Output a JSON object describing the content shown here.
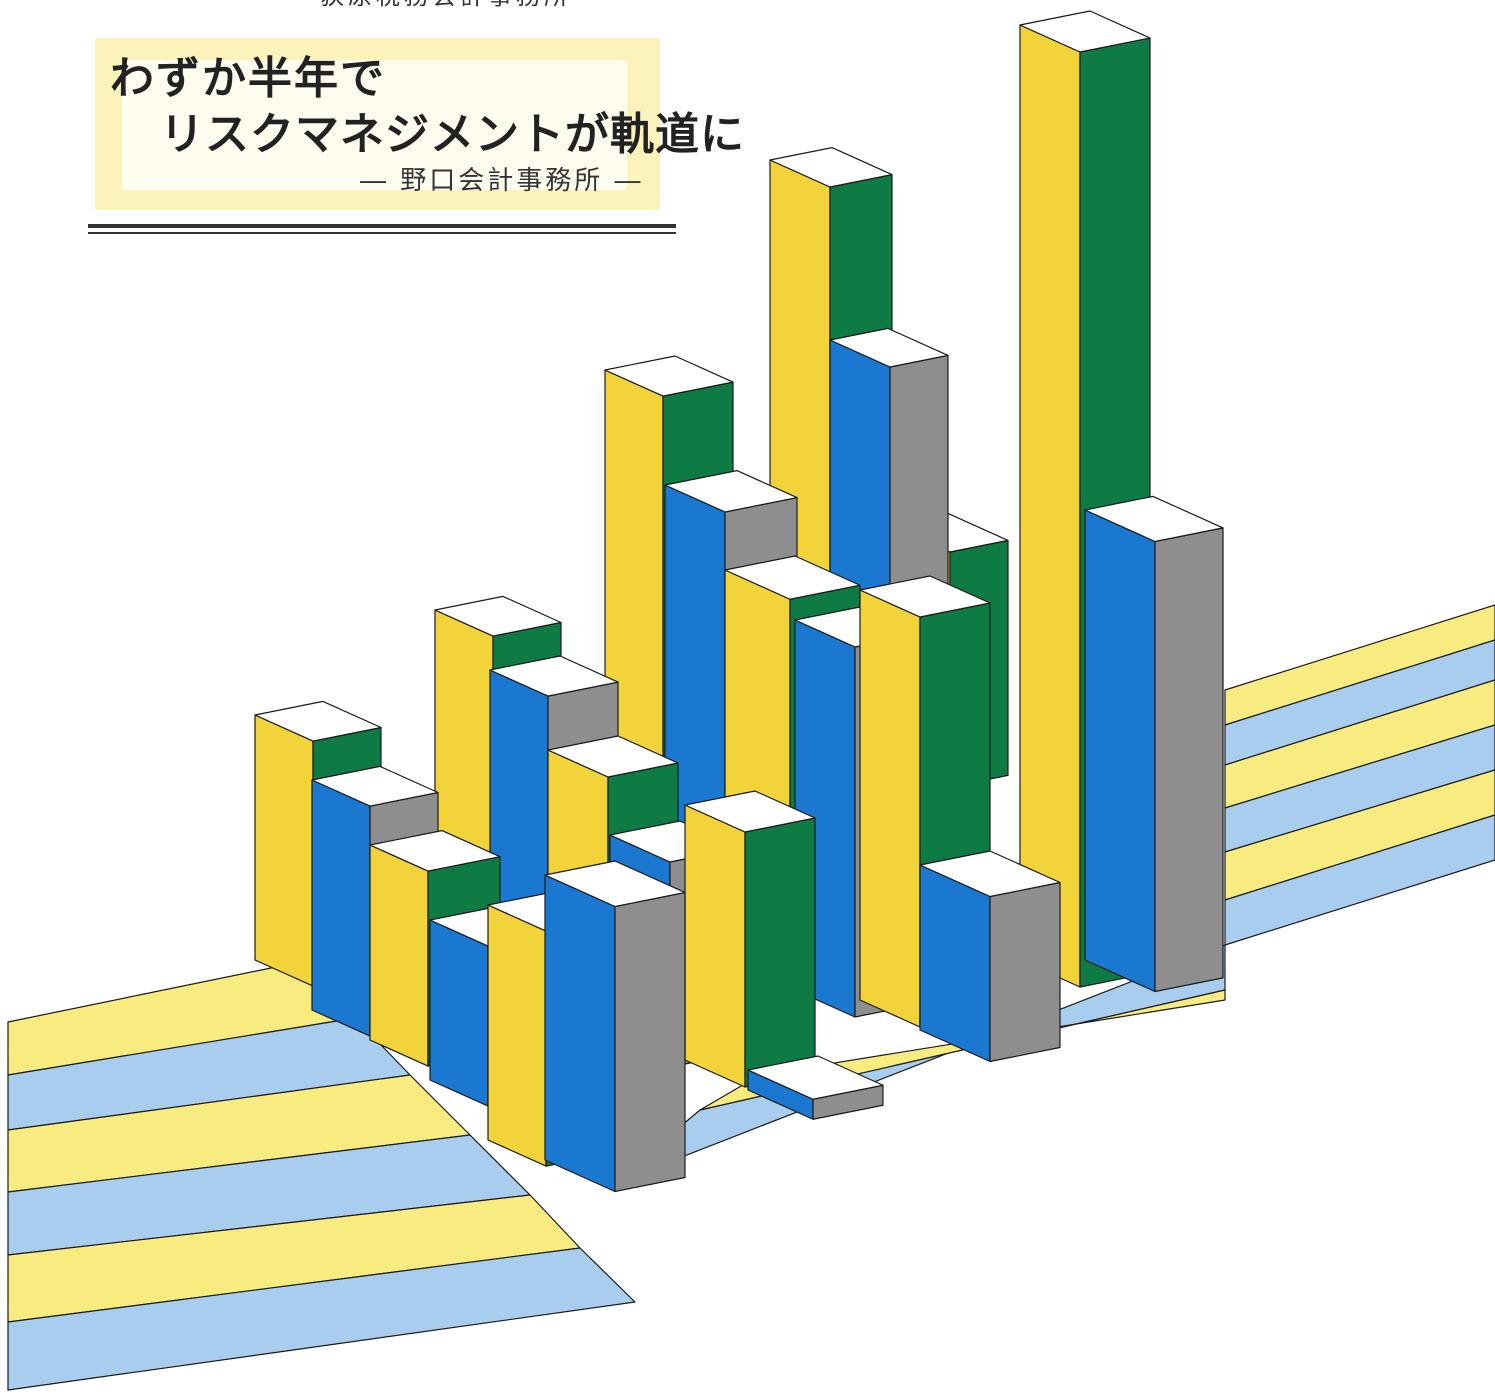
{
  "page": {
    "top_credit": "荻原税務会計事務所",
    "headline_line1": "わずか半年で",
    "headline_line2": "リスクマネジメントが軌道に",
    "byline": "― 野口会計事務所 ―"
  },
  "illustration": {
    "kind": "decorative 3d bar chart",
    "colors": {
      "yellow": "#f2d33a",
      "green": "#0e7a44",
      "blue": "#1a78d0",
      "gray": "#8e8e8e",
      "top": "#ffffff",
      "stripe_yellow": "#f8ec80",
      "stripe_blue": "#a9cdee"
    }
  }
}
